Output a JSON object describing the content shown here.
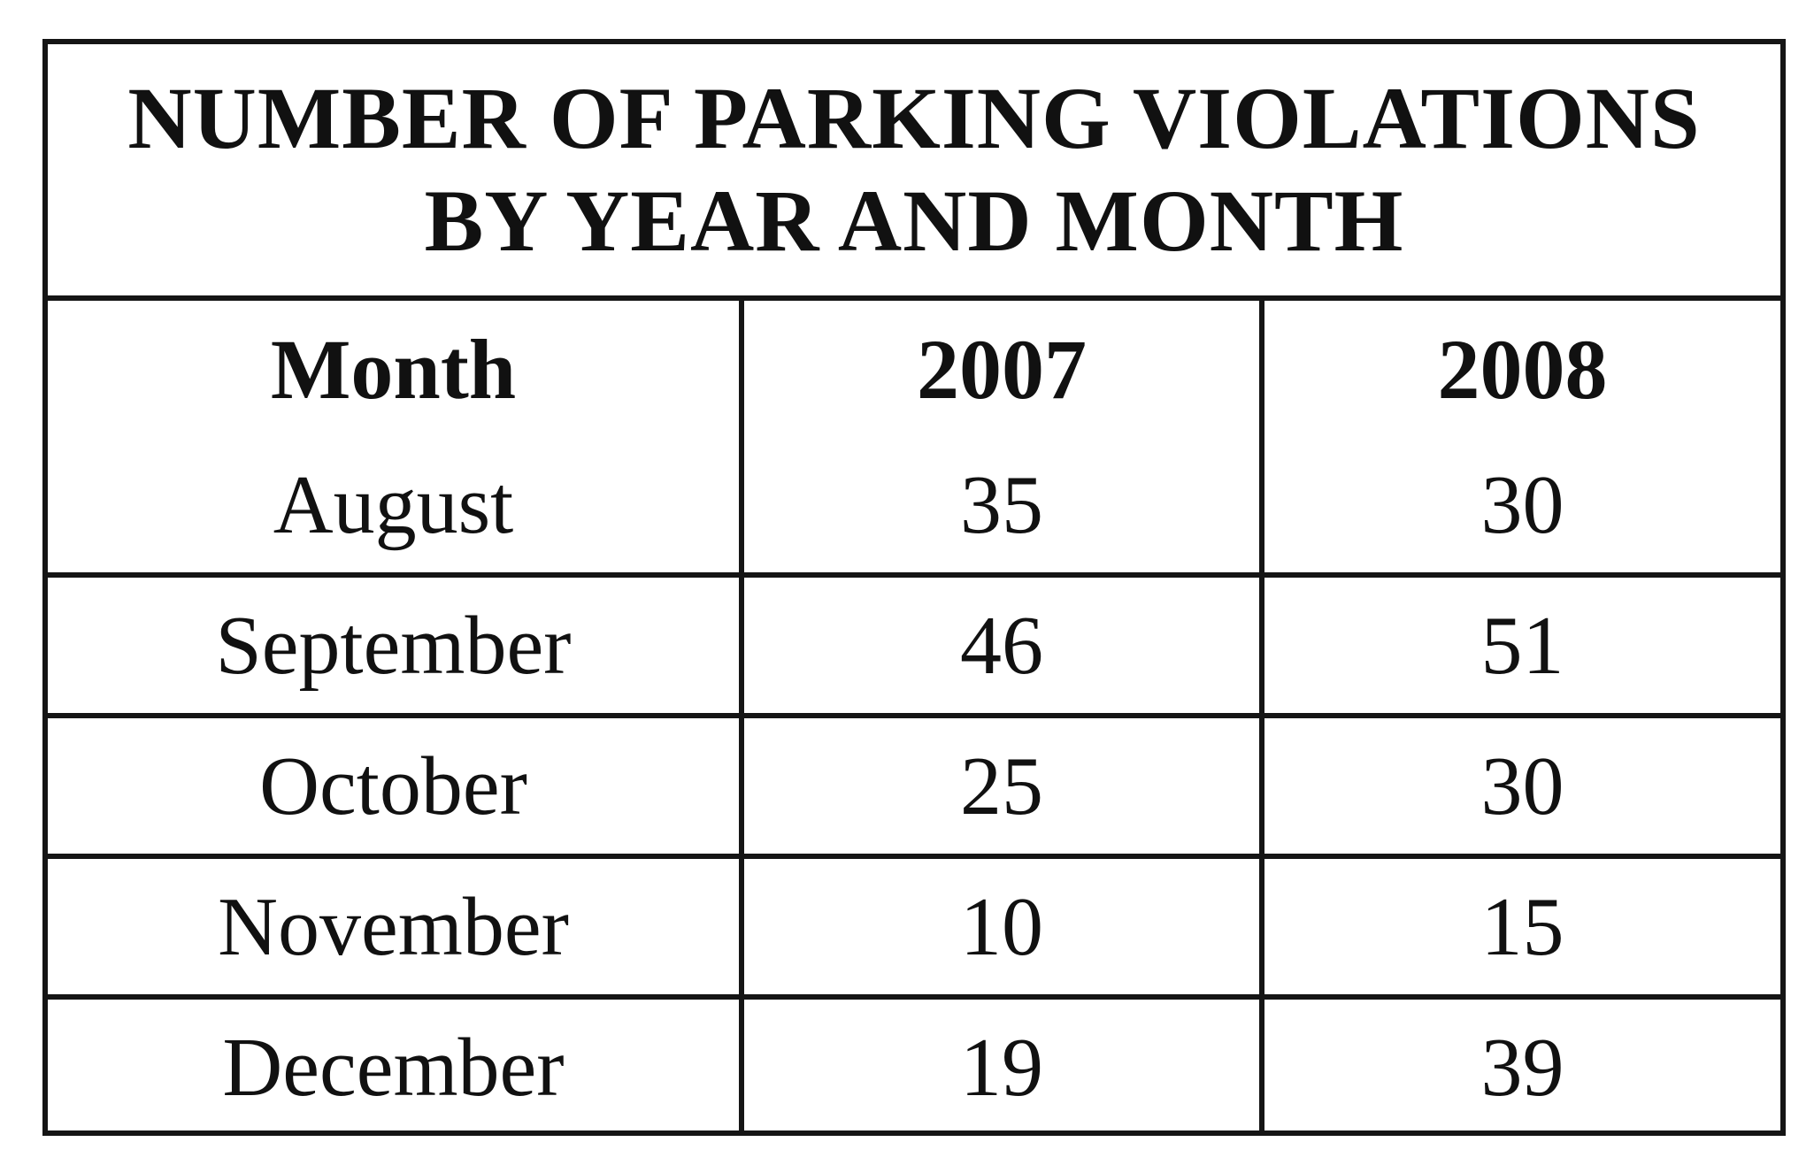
{
  "chart_data": {
    "type": "table",
    "title_lines": [
      "NUMBER OF PARKING VIOLATIONS",
      "BY YEAR AND MONTH"
    ],
    "columns": [
      "Month",
      "2007",
      "2008"
    ],
    "categories": [
      "August",
      "September",
      "October",
      "November",
      "December"
    ],
    "series": [
      {
        "name": "2007",
        "values": [
          35,
          46,
          25,
          10,
          19
        ]
      },
      {
        "name": "2008",
        "values": [
          30,
          51,
          30,
          15,
          39
        ]
      }
    ],
    "rows": [
      [
        "August",
        "35",
        "30"
      ],
      [
        "September",
        "46",
        "51"
      ],
      [
        "October",
        "25",
        "30"
      ],
      [
        "November",
        "10",
        "15"
      ],
      [
        "December",
        "19",
        "39"
      ]
    ]
  }
}
